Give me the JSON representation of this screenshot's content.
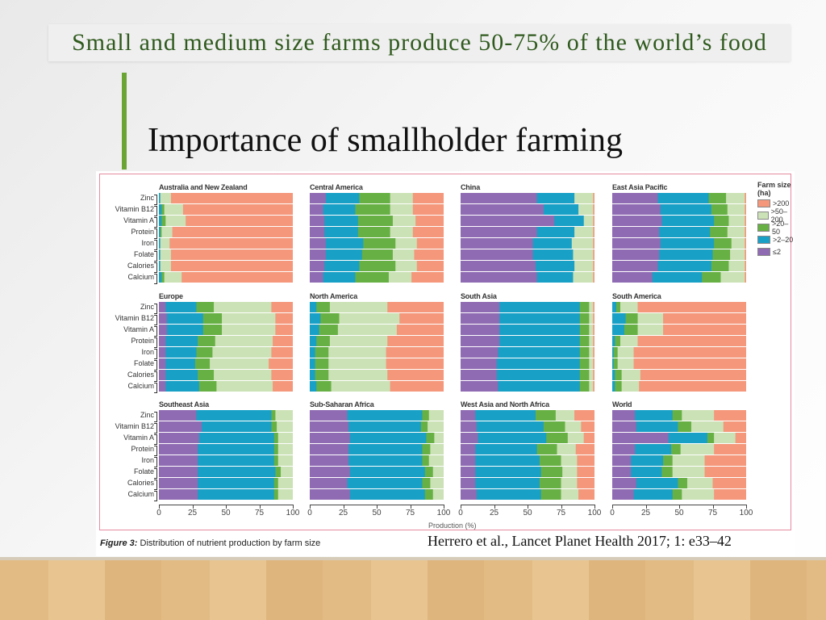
{
  "slide": {
    "title": "Importance of smallholder farming",
    "citation": "Herrero et al., Lancet Planet Health 2017; 1: e33–42",
    "banner": "Small and medium size farms produce 50-75% of the world’s food"
  },
  "figure": {
    "caption_label": "Figure 3:",
    "caption_text": "Distribution of nutrient production by farm size"
  },
  "chart_data": {
    "type": "bar",
    "orientation": "horizontal-stacked",
    "xlabel": "Production (%)",
    "xlim": [
      0,
      100
    ],
    "xticks": [
      "0",
      "25",
      "50",
      "75",
      "100"
    ],
    "categories": [
      "Zinc",
      "Vitamin B12",
      "Vitamin A",
      "Protein",
      "Iron",
      "Folate",
      "Calories",
      "Calcium"
    ],
    "legend": {
      "title": "Farm size (ha)",
      "placement": "right",
      "entries": [
        {
          "label": ">200",
          "color": "#f4977a"
        },
        {
          "label": ">50–200",
          "color": "#cbe2b6"
        },
        {
          "label": ">20–50",
          "color": "#67b043"
        },
        {
          "label": ">2–20",
          "color": "#18a0c6"
        },
        {
          "label": "≤2",
          "color": "#8f6bb3"
        }
      ]
    },
    "segment_order": [
      "≤2",
      ">2–20",
      ">20–50",
      ">50–200",
      ">200"
    ],
    "segment_colors": [
      "#8f6bb3",
      "#18a0c6",
      "#67b043",
      "#cbe2b6",
      "#f4977a"
    ],
    "panels": [
      {
        "title": "Australia and New Zealand",
        "values": [
          [
            0,
            1,
            0,
            8,
            91
          ],
          [
            0,
            2,
            2,
            14,
            82
          ],
          [
            0,
            2,
            3,
            15,
            80
          ],
          [
            0,
            1,
            1,
            8,
            90
          ],
          [
            0,
            1,
            0,
            7,
            92
          ],
          [
            0,
            1,
            0,
            8,
            91
          ],
          [
            0,
            1,
            0,
            8,
            91
          ],
          [
            0,
            2,
            2,
            13,
            83
          ]
        ]
      },
      {
        "title": "Central America",
        "values": [
          [
            12,
            25,
            23,
            17,
            23
          ],
          [
            10,
            24,
            26,
            17,
            23
          ],
          [
            11,
            25,
            26,
            17,
            21
          ],
          [
            11,
            25,
            24,
            17,
            23
          ],
          [
            12,
            28,
            24,
            16,
            20
          ],
          [
            12,
            27,
            23,
            16,
            22
          ],
          [
            11,
            26,
            27,
            16,
            20
          ],
          [
            10,
            24,
            25,
            17,
            24
          ]
        ]
      },
      {
        "title": "China",
        "values": [
          [
            57,
            28,
            0,
            14,
            1
          ],
          [
            62,
            26,
            0,
            11,
            1
          ],
          [
            70,
            22,
            0,
            7,
            1
          ],
          [
            57,
            28,
            0,
            14,
            1
          ],
          [
            54,
            29,
            0,
            16,
            1
          ],
          [
            54,
            30,
            0,
            15,
            1
          ],
          [
            56,
            29,
            0,
            14,
            1
          ],
          [
            57,
            27,
            0,
            15,
            1
          ]
        ]
      },
      {
        "title": "East Asia Pacific",
        "values": [
          [
            34,
            38,
            13,
            14,
            1
          ],
          [
            36,
            38,
            12,
            13,
            1
          ],
          [
            37,
            39,
            11,
            12,
            1
          ],
          [
            35,
            38,
            13,
            13,
            1
          ],
          [
            36,
            40,
            13,
            10,
            1
          ],
          [
            35,
            40,
            13,
            11,
            1
          ],
          [
            34,
            40,
            13,
            12,
            1
          ],
          [
            30,
            37,
            14,
            18,
            1
          ]
        ]
      },
      {
        "title": "Europe",
        "values": [
          [
            5,
            23,
            13,
            43,
            16
          ],
          [
            6,
            27,
            14,
            40,
            13
          ],
          [
            6,
            27,
            14,
            40,
            13
          ],
          [
            5,
            24,
            13,
            43,
            15
          ],
          [
            5,
            23,
            12,
            44,
            16
          ],
          [
            5,
            22,
            11,
            44,
            18
          ],
          [
            5,
            24,
            12,
            43,
            16
          ],
          [
            5,
            25,
            13,
            42,
            15
          ]
        ]
      },
      {
        "title": "North America",
        "values": [
          [
            0,
            5,
            10,
            43,
            42
          ],
          [
            0,
            8,
            14,
            45,
            33
          ],
          [
            0,
            7,
            14,
            44,
            35
          ],
          [
            0,
            5,
            10,
            43,
            42
          ],
          [
            0,
            4,
            10,
            43,
            43
          ],
          [
            0,
            4,
            10,
            43,
            43
          ],
          [
            0,
            4,
            10,
            44,
            42
          ],
          [
            0,
            5,
            11,
            44,
            40
          ]
        ]
      },
      {
        "title": "South Asia",
        "values": [
          [
            29,
            60,
            7,
            3,
            1
          ],
          [
            29,
            60,
            7,
            3,
            1
          ],
          [
            29,
            60,
            7,
            3,
            1
          ],
          [
            29,
            60,
            7,
            3,
            1
          ],
          [
            28,
            61,
            7,
            3,
            1
          ],
          [
            27,
            62,
            7,
            3,
            1
          ],
          [
            27,
            62,
            7,
            3,
            1
          ],
          [
            28,
            61,
            7,
            3,
            1
          ]
        ]
      },
      {
        "title": "South America",
        "values": [
          [
            0,
            3,
            3,
            13,
            81
          ],
          [
            0,
            10,
            9,
            19,
            62
          ],
          [
            0,
            9,
            10,
            19,
            62
          ],
          [
            0,
            2,
            4,
            13,
            81
          ],
          [
            0,
            1,
            3,
            12,
            84
          ],
          [
            0,
            1,
            3,
            12,
            84
          ],
          [
            0,
            2,
            5,
            14,
            79
          ],
          [
            0,
            2,
            5,
            13,
            80
          ]
        ]
      },
      {
        "title": "Southeast Asia",
        "values": [
          [
            28,
            56,
            3,
            13,
            0
          ],
          [
            32,
            52,
            4,
            12,
            0
          ],
          [
            30,
            56,
            3,
            11,
            0
          ],
          [
            29,
            57,
            3,
            11,
            0
          ],
          [
            29,
            57,
            3,
            11,
            0
          ],
          [
            29,
            58,
            4,
            9,
            0
          ],
          [
            29,
            57,
            3,
            11,
            0
          ],
          [
            29,
            57,
            3,
            11,
            0
          ]
        ]
      },
      {
        "title": "Sub-Saharan Africa",
        "values": [
          [
            28,
            56,
            5,
            11,
            0
          ],
          [
            29,
            54,
            5,
            12,
            0
          ],
          [
            30,
            57,
            6,
            7,
            0
          ],
          [
            29,
            55,
            6,
            10,
            0
          ],
          [
            29,
            55,
            5,
            11,
            0
          ],
          [
            30,
            56,
            6,
            8,
            0
          ],
          [
            28,
            56,
            6,
            10,
            0
          ],
          [
            30,
            56,
            6,
            8,
            0
          ]
        ]
      },
      {
        "title": "West Asia and North Africa",
        "values": [
          [
            11,
            45,
            15,
            14,
            15
          ],
          [
            12,
            50,
            16,
            12,
            10
          ],
          [
            13,
            51,
            16,
            12,
            8
          ],
          [
            11,
            46,
            15,
            14,
            14
          ],
          [
            11,
            48,
            16,
            12,
            13
          ],
          [
            11,
            49,
            16,
            11,
            13
          ],
          [
            11,
            48,
            16,
            12,
            13
          ],
          [
            12,
            48,
            15,
            13,
            12
          ]
        ]
      },
      {
        "title": "World",
        "values": [
          [
            17,
            28,
            7,
            24,
            24
          ],
          [
            18,
            31,
            10,
            24,
            17
          ],
          [
            42,
            29,
            5,
            16,
            8
          ],
          [
            17,
            27,
            7,
            25,
            24
          ],
          [
            14,
            24,
            7,
            24,
            31
          ],
          [
            14,
            23,
            8,
            24,
            31
          ],
          [
            18,
            31,
            7,
            19,
            25
          ],
          [
            16,
            29,
            7,
            24,
            24
          ]
        ]
      }
    ]
  }
}
